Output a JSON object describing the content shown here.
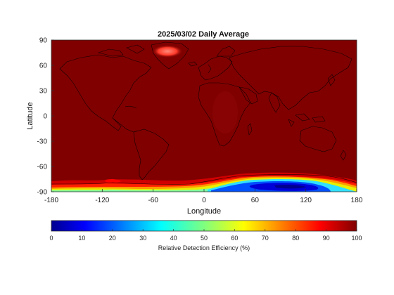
{
  "map": {
    "title": "2025/03/02 Daily Average",
    "xlabel": "Longitude",
    "ylabel": "Latitude",
    "xticks": [
      "-180",
      "-120",
      "-60",
      "0",
      "60",
      "120",
      "180"
    ],
    "yticks": [
      "90",
      "60",
      "30",
      "0",
      "-30",
      "-60",
      "-90"
    ],
    "xlim": [
      -180,
      180
    ],
    "ylim": [
      -90,
      90
    ],
    "base_color": "#800000",
    "coastline_color": "#000000",
    "regions": [
      {
        "name": "greenland-hotspot",
        "lon": -40,
        "lat": 77,
        "value": 88
      },
      {
        "name": "south-america-tip",
        "lon": -68,
        "lat": -55,
        "value": 92
      },
      {
        "name": "antarctic-low-east",
        "lon": 90,
        "lat": -81,
        "value": 10
      }
    ]
  },
  "colorbar": {
    "label": "Relative Detection Efficiency (%)",
    "ticks": [
      "0",
      "10",
      "20",
      "30",
      "40",
      "50",
      "60",
      "70",
      "80",
      "90",
      "100"
    ],
    "colormap": "jet",
    "range": [
      0,
      100
    ]
  }
}
